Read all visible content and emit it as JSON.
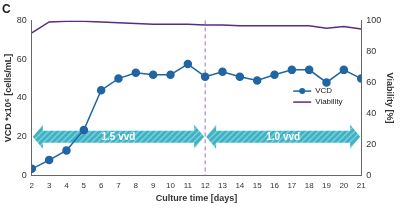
{
  "chart_data": {
    "type": "line",
    "title": "C",
    "x_label": "Culture time [days]",
    "y_label": "VCD *x10⁶ [cells/mL]",
    "y2_label": "Viability [%]",
    "x": [
      2,
      3,
      4,
      5,
      6,
      7,
      8,
      9,
      10,
      11,
      12,
      13,
      14,
      15,
      16,
      17,
      18,
      19,
      20,
      21
    ],
    "series": [
      {
        "name": "VCD",
        "color": "#1f66a3",
        "marker": "circle",
        "line_style": "solid",
        "values": [
          3.5,
          8,
          13,
          23.5,
          44,
          50,
          53,
          52,
          52,
          57.5,
          51,
          53.5,
          51,
          49,
          52,
          54.5,
          54.5,
          48,
          54.5,
          50
        ]
      },
      {
        "name": "Viability",
        "color": "#5b2c7d",
        "marker": "none",
        "line_style": "solid",
        "axis": "y2",
        "values": [
          92,
          99,
          99.5,
          99.5,
          99,
          98.5,
          98,
          97.5,
          97.5,
          97.5,
          97,
          97,
          96.5,
          96.5,
          96.5,
          96.5,
          96.5,
          95,
          96,
          94.5
        ]
      }
    ],
    "xlim": [
      2,
      21
    ],
    "xticks": [
      2,
      3,
      4,
      5,
      6,
      7,
      8,
      9,
      10,
      11,
      12,
      13,
      14,
      15,
      16,
      17,
      18,
      19,
      20,
      21
    ],
    "ylim": [
      0,
      80
    ],
    "yticks": [
      0,
      20,
      40,
      60,
      80
    ],
    "y2lim": [
      0,
      100
    ],
    "y2ticks": [
      0,
      20,
      40,
      60,
      80,
      100
    ],
    "grid": false,
    "legend": "right",
    "annotations": [
      {
        "type": "arrow",
        "text": "1.5 vvd",
        "x_start": 2,
        "x_end": 12,
        "y": 20,
        "color": "#3bb3c4"
      },
      {
        "type": "arrow",
        "text": "1.0 vvd",
        "x_start": 12,
        "x_end": 21,
        "y": 20,
        "color": "#3bb3c4"
      },
      {
        "type": "vline",
        "x": 12,
        "color": "#9b6fd0"
      }
    ]
  }
}
